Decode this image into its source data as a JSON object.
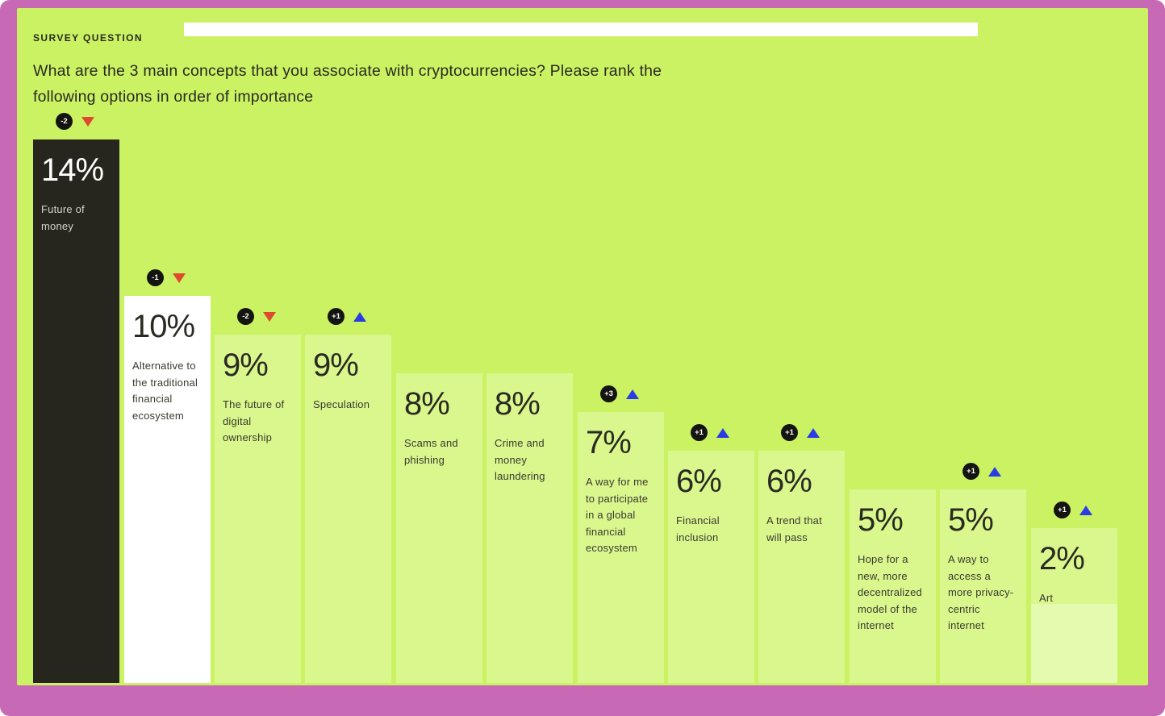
{
  "header": {
    "eyebrow": "SURVEY QUESTION",
    "question": "What are the 3 main concepts that you associate with cryptocurrencies? Please rank the following options in order of importance"
  },
  "colors": {
    "background": "#c869b5",
    "panel": "#cbf263",
    "bar": "#d9f78d",
    "dark_bar": "#26261e",
    "white_bar": "#ffffff",
    "trend_down": "#df4930",
    "trend_up": "#2a3de5"
  },
  "chart_data": {
    "type": "bar",
    "title": "What are the 3 main concepts that you associate with cryptocurrencies? Please rank the following options in order of importance",
    "categories": [
      "Future of money",
      "Alternative to the traditional financial ecosystem",
      "The future of digital ownership",
      "Speculation",
      "Scams and phishing",
      "Crime and money laundering",
      "A way for me to participate in a global financial ecosystem",
      "Financial inclusion",
      "A trend that will pass",
      "Hope for a new, more decentralized model of the internet",
      "A way to access a more privacy-centric internet",
      "Art"
    ],
    "values": [
      14,
      10,
      9,
      9,
      8,
      8,
      7,
      6,
      6,
      5,
      5,
      2
    ],
    "rank_changes": [
      -2,
      -1,
      -2,
      1,
      null,
      null,
      3,
      1,
      1,
      null,
      1,
      1
    ],
    "xlabel": "",
    "ylabel": "",
    "ylim": [
      0,
      15
    ],
    "grid": false,
    "legend": "none",
    "bars": [
      {
        "value_label": "14%",
        "label": "Future of money",
        "change": "-2",
        "direction": "down",
        "variant": "dark"
      },
      {
        "value_label": "10%",
        "label": "Alternative to the traditional financial ecosystem",
        "change": "-1",
        "direction": "down",
        "variant": "white"
      },
      {
        "value_label": "9%",
        "label": "The future of digital ownership",
        "change": "-2",
        "direction": "down",
        "variant": "green"
      },
      {
        "value_label": "9%",
        "label": "Speculation",
        "change": "+1",
        "direction": "up",
        "variant": "green"
      },
      {
        "value_label": "8%",
        "label": "Scams and phishing",
        "change": null,
        "direction": null,
        "variant": "green"
      },
      {
        "value_label": "8%",
        "label": "Crime and money laundering",
        "change": null,
        "direction": null,
        "variant": "green"
      },
      {
        "value_label": "7%",
        "label": "A way for me to participate in a global financial ecosystem",
        "change": "+3",
        "direction": "up",
        "variant": "green"
      },
      {
        "value_label": "6%",
        "label": "Financial inclusion",
        "change": "+1",
        "direction": "up",
        "variant": "green"
      },
      {
        "value_label": "6%",
        "label": "A trend that will pass",
        "change": "+1",
        "direction": "up",
        "variant": "green"
      },
      {
        "value_label": "5%",
        "label": "Hope for a new, more decentralized model of the internet",
        "change": null,
        "direction": null,
        "variant": "green"
      },
      {
        "value_label": "5%",
        "label": "A way to access a more privacy-centric internet",
        "change": "+1",
        "direction": "up",
        "variant": "green"
      },
      {
        "value_label": "2%",
        "label": "Art",
        "change": "+1",
        "direction": "up",
        "variant": "green"
      }
    ]
  }
}
